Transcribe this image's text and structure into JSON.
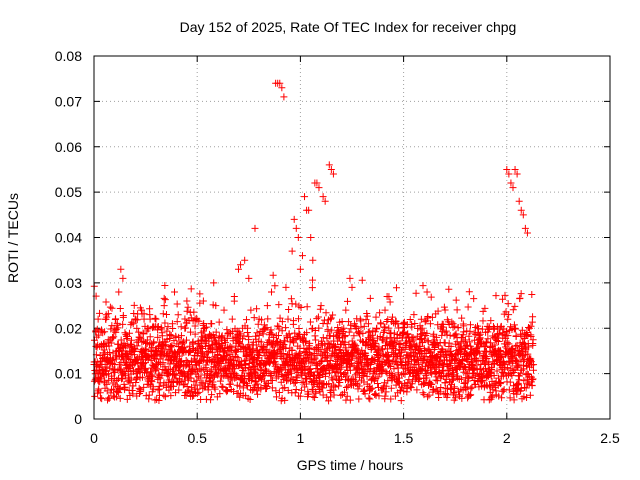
{
  "chart_data": {
    "type": "scatter",
    "title": "Day 152 of 2025, Rate Of TEC Index for receiver chpg",
    "xlabel": "GPS time / hours",
    "ylabel": "ROTI / TECUs",
    "xlim": [
      0,
      2.5
    ],
    "ylim": [
      0,
      0.08
    ],
    "x_ticks": [
      0,
      0.5,
      1,
      1.5,
      2,
      2.5
    ],
    "x_tick_labels": [
      "0",
      "0.5",
      "1",
      "1.5",
      "2",
      "2.5"
    ],
    "y_ticks": [
      0,
      0.01,
      0.02,
      0.03,
      0.04,
      0.05,
      0.06,
      0.07,
      0.08
    ],
    "y_tick_labels": [
      "0",
      "0.01",
      "0.02",
      "0.03",
      "0.04",
      "0.05",
      "0.06",
      "0.07",
      "0.08"
    ],
    "grid": true,
    "marker": "+",
    "color": "#ff0000",
    "series": [
      {
        "points": [
          [
            0.0,
            0.012
          ],
          [
            0.01,
            0.009
          ],
          [
            0.02,
            0.022
          ],
          [
            0.03,
            0.014
          ],
          [
            0.04,
            0.011
          ],
          [
            0.05,
            0.008
          ],
          [
            0.06,
            0.016
          ],
          [
            0.07,
            0.01
          ],
          [
            0.08,
            0.013
          ],
          [
            0.09,
            0.018
          ],
          [
            0.1,
            0.012
          ],
          [
            0.11,
            0.015
          ],
          [
            0.12,
            0.028
          ],
          [
            0.13,
            0.033
          ],
          [
            0.14,
            0.031
          ],
          [
            0.15,
            0.019
          ],
          [
            0.16,
            0.012
          ],
          [
            0.17,
            0.009
          ],
          [
            0.18,
            0.016
          ],
          [
            0.19,
            0.021
          ],
          [
            0.2,
            0.013
          ],
          [
            0.21,
            0.01
          ],
          [
            0.22,
            0.018
          ],
          [
            0.23,
            0.024
          ],
          [
            0.24,
            0.015
          ],
          [
            0.25,
            0.011
          ],
          [
            0.26,
            0.02
          ],
          [
            0.27,
            0.023
          ],
          [
            0.28,
            0.014
          ],
          [
            0.29,
            0.017
          ],
          [
            0.3,
            0.022
          ],
          [
            0.31,
            0.012
          ],
          [
            0.32,
            0.009
          ],
          [
            0.33,
            0.019
          ],
          [
            0.34,
            0.025
          ],
          [
            0.35,
            0.014
          ],
          [
            0.36,
            0.011
          ],
          [
            0.37,
            0.016
          ],
          [
            0.38,
            0.021
          ],
          [
            0.39,
            0.028
          ],
          [
            0.4,
            0.013
          ],
          [
            0.41,
            0.018
          ],
          [
            0.42,
            0.01
          ],
          [
            0.43,
            0.015
          ],
          [
            0.44,
            0.02
          ],
          [
            0.45,
            0.026
          ],
          [
            0.46,
            0.012
          ],
          [
            0.47,
            0.009
          ],
          [
            0.48,
            0.017
          ],
          [
            0.49,
            0.022
          ],
          [
            0.5,
            0.014
          ],
          [
            0.51,
            0.011
          ],
          [
            0.52,
            0.019
          ],
          [
            0.53,
            0.026
          ],
          [
            0.54,
            0.016
          ],
          [
            0.55,
            0.01
          ],
          [
            0.56,
            0.013
          ],
          [
            0.57,
            0.021
          ],
          [
            0.58,
            0.03
          ],
          [
            0.59,
            0.025
          ],
          [
            0.6,
            0.015
          ],
          [
            0.61,
            0.011
          ],
          [
            0.62,
            0.018
          ],
          [
            0.63,
            0.024
          ],
          [
            0.64,
            0.013
          ],
          [
            0.65,
            0.009
          ],
          [
            0.66,
            0.016
          ],
          [
            0.67,
            0.022
          ],
          [
            0.68,
            0.027
          ],
          [
            0.69,
            0.012
          ],
          [
            0.7,
            0.033
          ],
          [
            0.71,
            0.034
          ],
          [
            0.72,
            0.02
          ],
          [
            0.73,
            0.035
          ],
          [
            0.74,
            0.014
          ],
          [
            0.75,
            0.031
          ],
          [
            0.76,
            0.024
          ],
          [
            0.77,
            0.015
          ],
          [
            0.78,
            0.042
          ],
          [
            0.79,
            0.019
          ],
          [
            0.8,
            0.022
          ],
          [
            0.81,
            0.016
          ],
          [
            0.82,
            0.012
          ],
          [
            0.83,
            0.02
          ],
          [
            0.84,
            0.025
          ],
          [
            0.85,
            0.014
          ],
          [
            0.86,
            0.028
          ],
          [
            0.87,
            0.018
          ],
          [
            0.88,
            0.074
          ],
          [
            0.89,
            0.074
          ],
          [
            0.9,
            0.074
          ],
          [
            0.91,
            0.073
          ],
          [
            0.92,
            0.071
          ],
          [
            0.93,
            0.029
          ],
          [
            0.94,
            0.022
          ],
          [
            0.95,
            0.017
          ],
          [
            0.96,
            0.037
          ],
          [
            0.97,
            0.044
          ],
          [
            0.98,
            0.042
          ],
          [
            0.99,
            0.04
          ],
          [
            1.0,
            0.033
          ],
          [
            1.01,
            0.036
          ],
          [
            1.02,
            0.049
          ],
          [
            1.03,
            0.046
          ],
          [
            1.04,
            0.046
          ],
          [
            1.05,
            0.04
          ],
          [
            1.06,
            0.035
          ],
          [
            1.07,
            0.052
          ],
          [
            1.08,
            0.052
          ],
          [
            1.09,
            0.051
          ],
          [
            1.1,
            0.025
          ],
          [
            1.11,
            0.049
          ],
          [
            1.12,
            0.048
          ],
          [
            1.13,
            0.021
          ],
          [
            1.14,
            0.056
          ],
          [
            1.15,
            0.055
          ],
          [
            1.16,
            0.054
          ],
          [
            1.17,
            0.016
          ],
          [
            1.18,
            0.012
          ],
          [
            1.19,
            0.018
          ],
          [
            1.2,
            0.014
          ],
          [
            1.21,
            0.02
          ],
          [
            1.22,
            0.024
          ],
          [
            1.23,
            0.013
          ],
          [
            1.24,
            0.031
          ],
          [
            1.25,
            0.029
          ],
          [
            1.26,
            0.015
          ],
          [
            1.27,
            0.011
          ],
          [
            1.28,
            0.019
          ],
          [
            1.29,
            0.022
          ],
          [
            1.3,
            0.013
          ],
          [
            1.31,
            0.01
          ],
          [
            1.32,
            0.017
          ],
          [
            1.33,
            0.021
          ],
          [
            1.34,
            0.012
          ],
          [
            1.35,
            0.009
          ],
          [
            1.36,
            0.016
          ],
          [
            1.37,
            0.02
          ],
          [
            1.38,
            0.014
          ],
          [
            1.39,
            0.011
          ],
          [
            1.4,
            0.018
          ],
          [
            1.41,
            0.024
          ],
          [
            1.42,
            0.027
          ],
          [
            1.43,
            0.013
          ],
          [
            1.44,
            0.01
          ],
          [
            1.45,
            0.016
          ],
          [
            1.46,
            0.021
          ],
          [
            1.47,
            0.012
          ],
          [
            1.48,
            0.009
          ],
          [
            1.49,
            0.015
          ],
          [
            1.5,
            0.019
          ],
          [
            1.51,
            0.011
          ],
          [
            1.52,
            0.008
          ],
          [
            1.53,
            0.014
          ],
          [
            1.54,
            0.018
          ],
          [
            1.55,
            0.023
          ],
          [
            1.56,
            0.012
          ],
          [
            1.57,
            0.009
          ],
          [
            1.58,
            0.016
          ],
          [
            1.59,
            0.02
          ],
          [
            1.6,
            0.013
          ],
          [
            1.61,
            0.01
          ],
          [
            1.62,
            0.017
          ],
          [
            1.63,
            0.021
          ],
          [
            1.64,
            0.014
          ],
          [
            1.65,
            0.011
          ],
          [
            1.66,
            0.018
          ],
          [
            1.67,
            0.012
          ],
          [
            1.68,
            0.009
          ],
          [
            1.69,
            0.015
          ],
          [
            1.7,
            0.019
          ],
          [
            1.71,
            0.012
          ],
          [
            1.72,
            0.01
          ],
          [
            1.73,
            0.016
          ],
          [
            1.74,
            0.021
          ],
          [
            1.75,
            0.013
          ],
          [
            1.76,
            0.009
          ],
          [
            1.77,
            0.015
          ],
          [
            1.78,
            0.018
          ],
          [
            1.79,
            0.011
          ],
          [
            1.8,
            0.008
          ],
          [
            1.81,
            0.014
          ],
          [
            1.82,
            0.017
          ],
          [
            1.83,
            0.012
          ],
          [
            1.84,
            0.01
          ],
          [
            1.85,
            0.015
          ],
          [
            1.86,
            0.019
          ],
          [
            1.87,
            0.011
          ],
          [
            1.88,
            0.009
          ],
          [
            1.89,
            0.014
          ],
          [
            1.9,
            0.017
          ],
          [
            1.91,
            0.012
          ],
          [
            1.92,
            0.01
          ],
          [
            1.93,
            0.016
          ],
          [
            1.94,
            0.02
          ],
          [
            1.95,
            0.013
          ],
          [
            1.96,
            0.009
          ],
          [
            1.97,
            0.015
          ],
          [
            1.98,
            0.019
          ],
          [
            1.99,
            0.011
          ],
          [
            2.0,
            0.055
          ],
          [
            2.01,
            0.054
          ],
          [
            2.02,
            0.052
          ],
          [
            2.03,
            0.051
          ],
          [
            2.04,
            0.055
          ],
          [
            2.05,
            0.054
          ],
          [
            2.06,
            0.048
          ],
          [
            2.07,
            0.046
          ],
          [
            2.08,
            0.045
          ],
          [
            2.09,
            0.042
          ],
          [
            2.1,
            0.041
          ],
          [
            2.11,
            0.02
          ],
          [
            2.12,
            0.012
          ]
        ],
        "cluster": {
          "x_range": [
            0.0,
            2.13
          ],
          "y_center": 0.0125,
          "y_spread": 0.0075,
          "density": "dense"
        }
      }
    ]
  }
}
